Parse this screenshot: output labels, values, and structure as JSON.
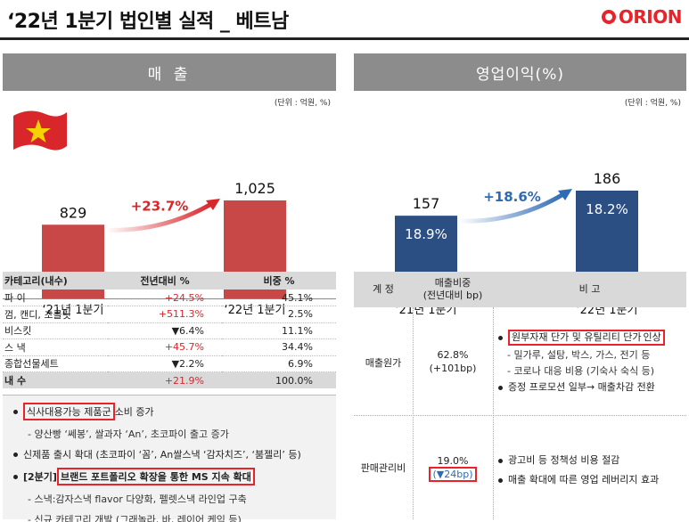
{
  "page": {
    "title": "‘22년 1분기 법인별 실적 _ 베트남",
    "logo_text": "ORION"
  },
  "colors": {
    "sales_bar": "#c84848",
    "profit_bar": "#2b4f83",
    "accent_red": "#d9262b",
    "accent_blue": "#2e6ab5"
  },
  "sales": {
    "header": "매 출",
    "unit": "(단위 : 억원, %)",
    "growth_label": "+23.7%",
    "flag_icon": "vietnam-flag-icon"
  },
  "profit": {
    "header": "영업이익(%)",
    "unit": "(단위 : 억원, %)",
    "growth_label": "+18.6%"
  },
  "chart_data": [
    {
      "type": "bar",
      "categories": [
        "‘21년 1분기",
        "‘22년 1분기"
      ],
      "values": [
        829,
        1025
      ],
      "value_labels": [
        "829",
        "1,025"
      ],
      "title": "매 출",
      "annotation": "+23.7%"
    },
    {
      "type": "bar",
      "categories": [
        "‘21년 1분기",
        "‘22년 1분기"
      ],
      "values": [
        157,
        186
      ],
      "value_labels": [
        "157",
        "186"
      ],
      "inner_labels": [
        "18.9%",
        "18.2%"
      ],
      "title": "영업이익(%)",
      "annotation": "+18.6%"
    }
  ],
  "sales_table": {
    "headers": [
      "카테고리(내수)",
      "전년대비 %",
      "비중 %"
    ],
    "rows": [
      {
        "cat": "파 이",
        "yoy": "+24.5%",
        "share": "45.1%",
        "yoy_red": true
      },
      {
        "cat": "껌, 캔디, 초콜릿",
        "yoy": "+511.3%",
        "share": "2.5%",
        "yoy_red": true
      },
      {
        "cat": "비스킷",
        "yoy": "▼6.4%",
        "share": "11.1%",
        "yoy_red": false
      },
      {
        "cat": "스 낵",
        "yoy": "+45.7%",
        "share": "34.4%",
        "yoy_red": true
      },
      {
        "cat": "종합선물세트",
        "yoy": "▼2.2%",
        "share": "6.9%",
        "yoy_red": false
      }
    ],
    "total": {
      "cat": "내 수",
      "yoy": "+21.9%",
      "share": "100.0%"
    }
  },
  "notes": {
    "b1": "식사대용가능 제품군",
    "b1_rest": " 소비 증가",
    "b1_sub": "- 양산빵 ‘쎄봉’, 쌀과자 ‘An’, 초코파이 출고 증가",
    "b2": "신제품 출시 확대 (초코파이 ‘꼼’, An쌀스낵 ‘감자치즈’, ‘붐젤리’ 등)",
    "b3_prefix": "[2분기]",
    "b3_box": "브랜드 포트폴리오 확장을 통한 MS 지속 확대",
    "b3_sub1": "- 스낵:감자스낵  flavor 다양화, 펠렛스낵 라인업 구축",
    "b3_sub2": "- 신규 카테고리 개발 (그래놀라, 바, 레이어 케익 등)"
  },
  "cost_table": {
    "h1": "계 정",
    "h2a": "매출비중",
    "h2b": "(전년대비 bp)",
    "h3": "비 고",
    "r1": {
      "label": "매출원가",
      "pct": "62.8%",
      "bp": "(+101bp)",
      "n1": "원부자재 단가 및 유틸리티 단가",
      "n1_rest": " 인상",
      "n1_sub1": "- 밀가루, 설탕, 박스, 가스, 전기 등",
      "n1_sub2": "- 코로나 대응 비용 (기숙사 숙식 등)",
      "n2": "증정 프로모션 일부→ 매출차감 전환"
    },
    "r2": {
      "label": "판매관리비",
      "pct": "19.0%",
      "bp": "(▼24bp)",
      "n1": "광고비 등 정책성 비용 절감",
      "n2": "매출 확대에 따른 영업 레버리지 효과"
    }
  }
}
